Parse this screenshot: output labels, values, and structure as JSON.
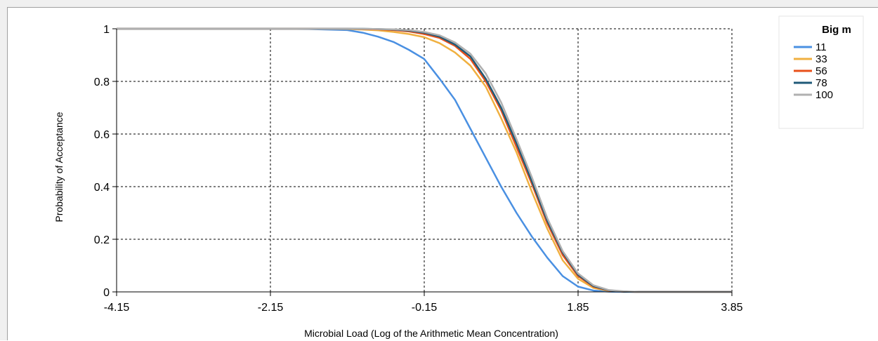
{
  "chart_data": {
    "type": "line",
    "title": "",
    "xlabel": "Microbial Load (Log of the Arithmetic Mean Concentration)",
    "ylabel": "Probability of Acceptance",
    "xlim": [
      -4.15,
      3.85
    ],
    "ylim": [
      0,
      1
    ],
    "x_ticks": [
      "-4.15",
      "-2.15",
      "-0.15",
      "1.85",
      "3.85"
    ],
    "y_ticks": [
      "0",
      "0.2",
      "0.4",
      "0.6",
      "0.8",
      "1"
    ],
    "grid": true,
    "legend": {
      "title": "Big m",
      "position": "top-right"
    },
    "x": [
      -4.15,
      -3.15,
      -2.15,
      -1.65,
      -1.15,
      -0.95,
      -0.75,
      -0.55,
      -0.35,
      -0.15,
      0.05,
      0.25,
      0.45,
      0.65,
      0.85,
      1.05,
      1.25,
      1.45,
      1.65,
      1.85,
      2.05,
      2.25,
      2.45,
      2.65,
      2.85,
      3.35,
      3.85
    ],
    "series": [
      {
        "name": "11",
        "color": "#4a90e2",
        "values": [
          1,
          1,
          1,
          0.999,
          0.995,
          0.985,
          0.97,
          0.95,
          0.92,
          0.885,
          0.81,
          0.73,
          0.62,
          0.51,
          0.4,
          0.3,
          0.21,
          0.13,
          0.06,
          0.02,
          0.005,
          0.001,
          0,
          0,
          0,
          0,
          0
        ]
      },
      {
        "name": "33",
        "color": "#f0b040",
        "values": [
          1,
          1,
          1,
          1,
          0.999,
          0.997,
          0.994,
          0.988,
          0.98,
          0.968,
          0.945,
          0.91,
          0.86,
          0.78,
          0.66,
          0.53,
          0.38,
          0.24,
          0.12,
          0.05,
          0.015,
          0.004,
          0.001,
          0,
          0,
          0,
          0
        ]
      },
      {
        "name": "56",
        "color": "#e8501a",
        "values": [
          1,
          1,
          1,
          1,
          1,
          0.999,
          0.998,
          0.995,
          0.99,
          0.98,
          0.965,
          0.935,
          0.885,
          0.8,
          0.69,
          0.55,
          0.41,
          0.26,
          0.14,
          0.06,
          0.02,
          0.005,
          0.001,
          0,
          0,
          0,
          0
        ]
      },
      {
        "name": "78",
        "color": "#1f5a78",
        "values": [
          1,
          1,
          1,
          1,
          1,
          1,
          0.999,
          0.997,
          0.993,
          0.985,
          0.97,
          0.94,
          0.895,
          0.81,
          0.7,
          0.565,
          0.42,
          0.27,
          0.15,
          0.065,
          0.022,
          0.006,
          0.001,
          0,
          0,
          0,
          0
        ]
      },
      {
        "name": "100",
        "color": "#b0b0b0",
        "values": [
          1,
          1,
          1,
          1,
          1,
          1,
          0.999,
          0.998,
          0.995,
          0.988,
          0.975,
          0.948,
          0.905,
          0.83,
          0.72,
          0.58,
          0.435,
          0.28,
          0.155,
          0.07,
          0.025,
          0.007,
          0.002,
          0,
          0,
          0,
          0
        ]
      }
    ]
  }
}
